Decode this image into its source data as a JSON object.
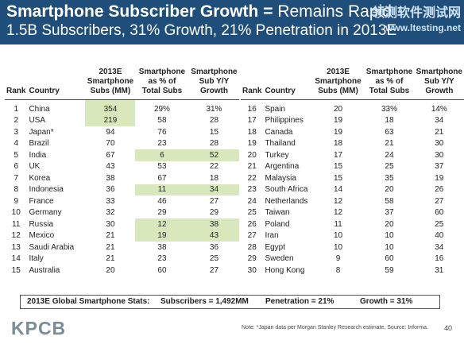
{
  "header": {
    "title_bold": "Smartphone Subscriber Growth = ",
    "title_rest": "Remains Rapid",
    "subtitle": "1.5B Subscribers, 31% Growth, 21% Penetration in 2013E",
    "watermark_cn": "领测软件测试网",
    "watermark_url": "www.ltesting.net"
  },
  "columns": {
    "rank": "Rank",
    "country": "Country",
    "subs": [
      "2013E",
      "Smartphone",
      "Subs (MM)"
    ],
    "pct": [
      "Smartphone",
      "as % of",
      "Total Subs"
    ],
    "growth": [
      "Smartphone",
      "Sub Y/Y",
      "Growth"
    ]
  },
  "left_rows": [
    {
      "rank": "1",
      "country": "China",
      "subs": "354",
      "pct": "29%",
      "growth": "31%"
    },
    {
      "rank": "2",
      "country": "USA",
      "subs": "219",
      "pct": "58",
      "growth": "28"
    },
    {
      "rank": "3",
      "country": "Japan*",
      "subs": "94",
      "pct": "76",
      "growth": "15"
    },
    {
      "rank": "4",
      "country": "Brazil",
      "subs": "70",
      "pct": "23",
      "growth": "28"
    },
    {
      "rank": "5",
      "country": "India",
      "subs": "67",
      "pct": "6",
      "growth": "52"
    },
    {
      "rank": "6",
      "country": "UK",
      "subs": "43",
      "pct": "53",
      "growth": "22"
    },
    {
      "rank": "7",
      "country": "Korea",
      "subs": "38",
      "pct": "67",
      "growth": "18"
    },
    {
      "rank": "8",
      "country": "Indonesia",
      "subs": "36",
      "pct": "11",
      "growth": "34"
    },
    {
      "rank": "9",
      "country": "France",
      "subs": "33",
      "pct": "46",
      "growth": "27"
    },
    {
      "rank": "10",
      "country": "Germany",
      "subs": "32",
      "pct": "29",
      "growth": "29"
    },
    {
      "rank": "11",
      "country": "Russia",
      "subs": "30",
      "pct": "12",
      "growth": "38"
    },
    {
      "rank": "12",
      "country": "Mexico",
      "subs": "21",
      "pct": "19",
      "growth": "43"
    },
    {
      "rank": "13",
      "country": "Saudi Arabia",
      "subs": "21",
      "pct": "38",
      "growth": "36"
    },
    {
      "rank": "14",
      "country": "Italy",
      "subs": "21",
      "pct": "23",
      "growth": "25"
    },
    {
      "rank": "15",
      "country": "Australia",
      "subs": "20",
      "pct": "60",
      "growth": "27"
    }
  ],
  "right_rows": [
    {
      "rank": "16",
      "country": "Spain",
      "subs": "20",
      "pct": "33%",
      "growth": "14%"
    },
    {
      "rank": "17",
      "country": "Philippines",
      "subs": "19",
      "pct": "18",
      "growth": "34"
    },
    {
      "rank": "18",
      "country": "Canada",
      "subs": "19",
      "pct": "63",
      "growth": "21"
    },
    {
      "rank": "19",
      "country": "Thailand",
      "subs": "18",
      "pct": "21",
      "growth": "30"
    },
    {
      "rank": "20",
      "country": "Turkey",
      "subs": "17",
      "pct": "24",
      "growth": "30"
    },
    {
      "rank": "21",
      "country": "Argentina",
      "subs": "15",
      "pct": "25",
      "growth": "37"
    },
    {
      "rank": "22",
      "country": "Malaysia",
      "subs": "15",
      "pct": "35",
      "growth": "19"
    },
    {
      "rank": "23",
      "country": "South Africa",
      "subs": "14",
      "pct": "20",
      "growth": "26"
    },
    {
      "rank": "24",
      "country": "Netherlands",
      "subs": "12",
      "pct": "58",
      "growth": "27"
    },
    {
      "rank": "25",
      "country": "Taiwan",
      "subs": "12",
      "pct": "37",
      "growth": "60"
    },
    {
      "rank": "26",
      "country": "Poland",
      "subs": "11",
      "pct": "20",
      "growth": "25"
    },
    {
      "rank": "27",
      "country": "Iran",
      "subs": "10",
      "pct": "10",
      "growth": "40"
    },
    {
      "rank": "28",
      "country": "Egypt",
      "subs": "10",
      "pct": "10",
      "growth": "34"
    },
    {
      "rank": "29",
      "country": "Sweden",
      "subs": "9",
      "pct": "60",
      "growth": "16"
    },
    {
      "rank": "30",
      "country": "Hong Kong",
      "subs": "8",
      "pct": "59",
      "growth": "31"
    }
  ],
  "stats": {
    "label": "2013E Global Smartphone Stats:",
    "subscribers": "Subscribers = 1,492MM",
    "penetration": "Penetration = 21%",
    "growth": "Growth = 31%"
  },
  "footer": {
    "logo": "KPCB",
    "note": "Note: *Japan data per Morgan Stanley Research estimate. Source: Informa.",
    "page": "40"
  },
  "colors": {
    "header_bg": "#1f4e7a",
    "highlight": "#d8e8bc"
  }
}
